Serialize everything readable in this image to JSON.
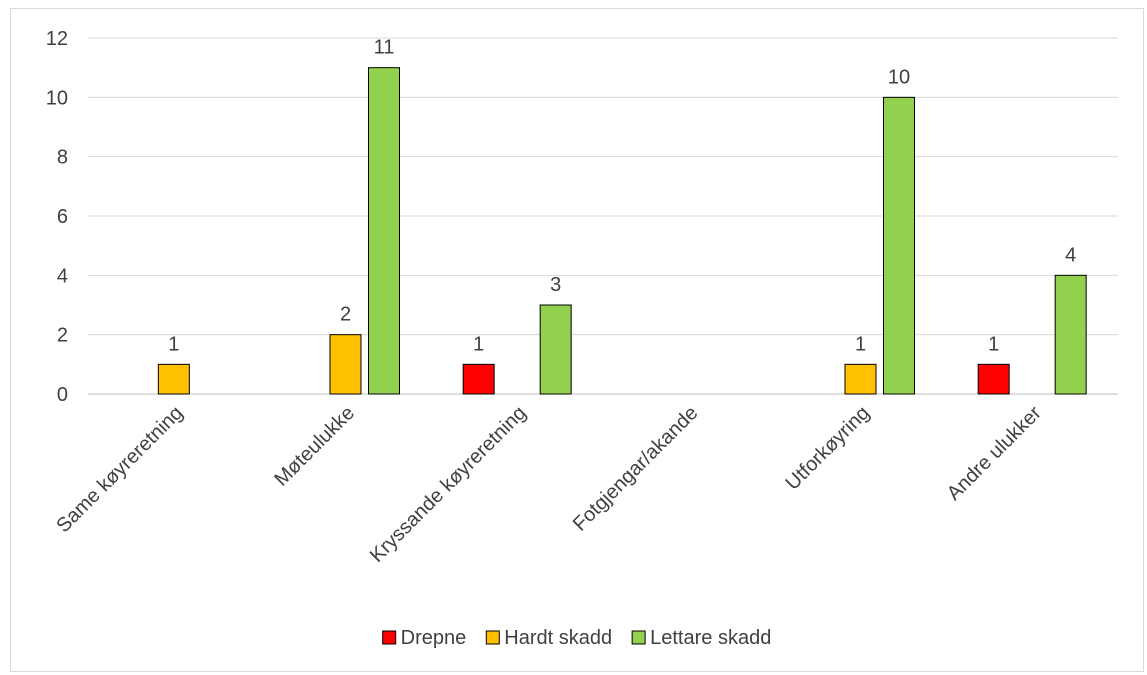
{
  "chart_data": {
    "type": "bar",
    "categories": [
      "Same køyreretning",
      "Møteulukke",
      "Kryssande køyreretning",
      "Fotgjengar/akande",
      "Utforkøyring",
      "Andre ulukker"
    ],
    "series": [
      {
        "name": "Drepne",
        "color": "#ff0000",
        "values": [
          null,
          null,
          1,
          null,
          null,
          1
        ]
      },
      {
        "name": "Hardt skadd",
        "color": "#ffc000",
        "values": [
          1,
          2,
          null,
          null,
          1,
          null
        ]
      },
      {
        "name": "Lettare skadd",
        "color": "#92d050",
        "values": [
          null,
          11,
          3,
          null,
          10,
          4
        ]
      }
    ],
    "ylim": [
      0,
      12
    ],
    "yticks": [
      0,
      2,
      4,
      6,
      8,
      10,
      12
    ],
    "grid": true,
    "legend": "bottom"
  }
}
